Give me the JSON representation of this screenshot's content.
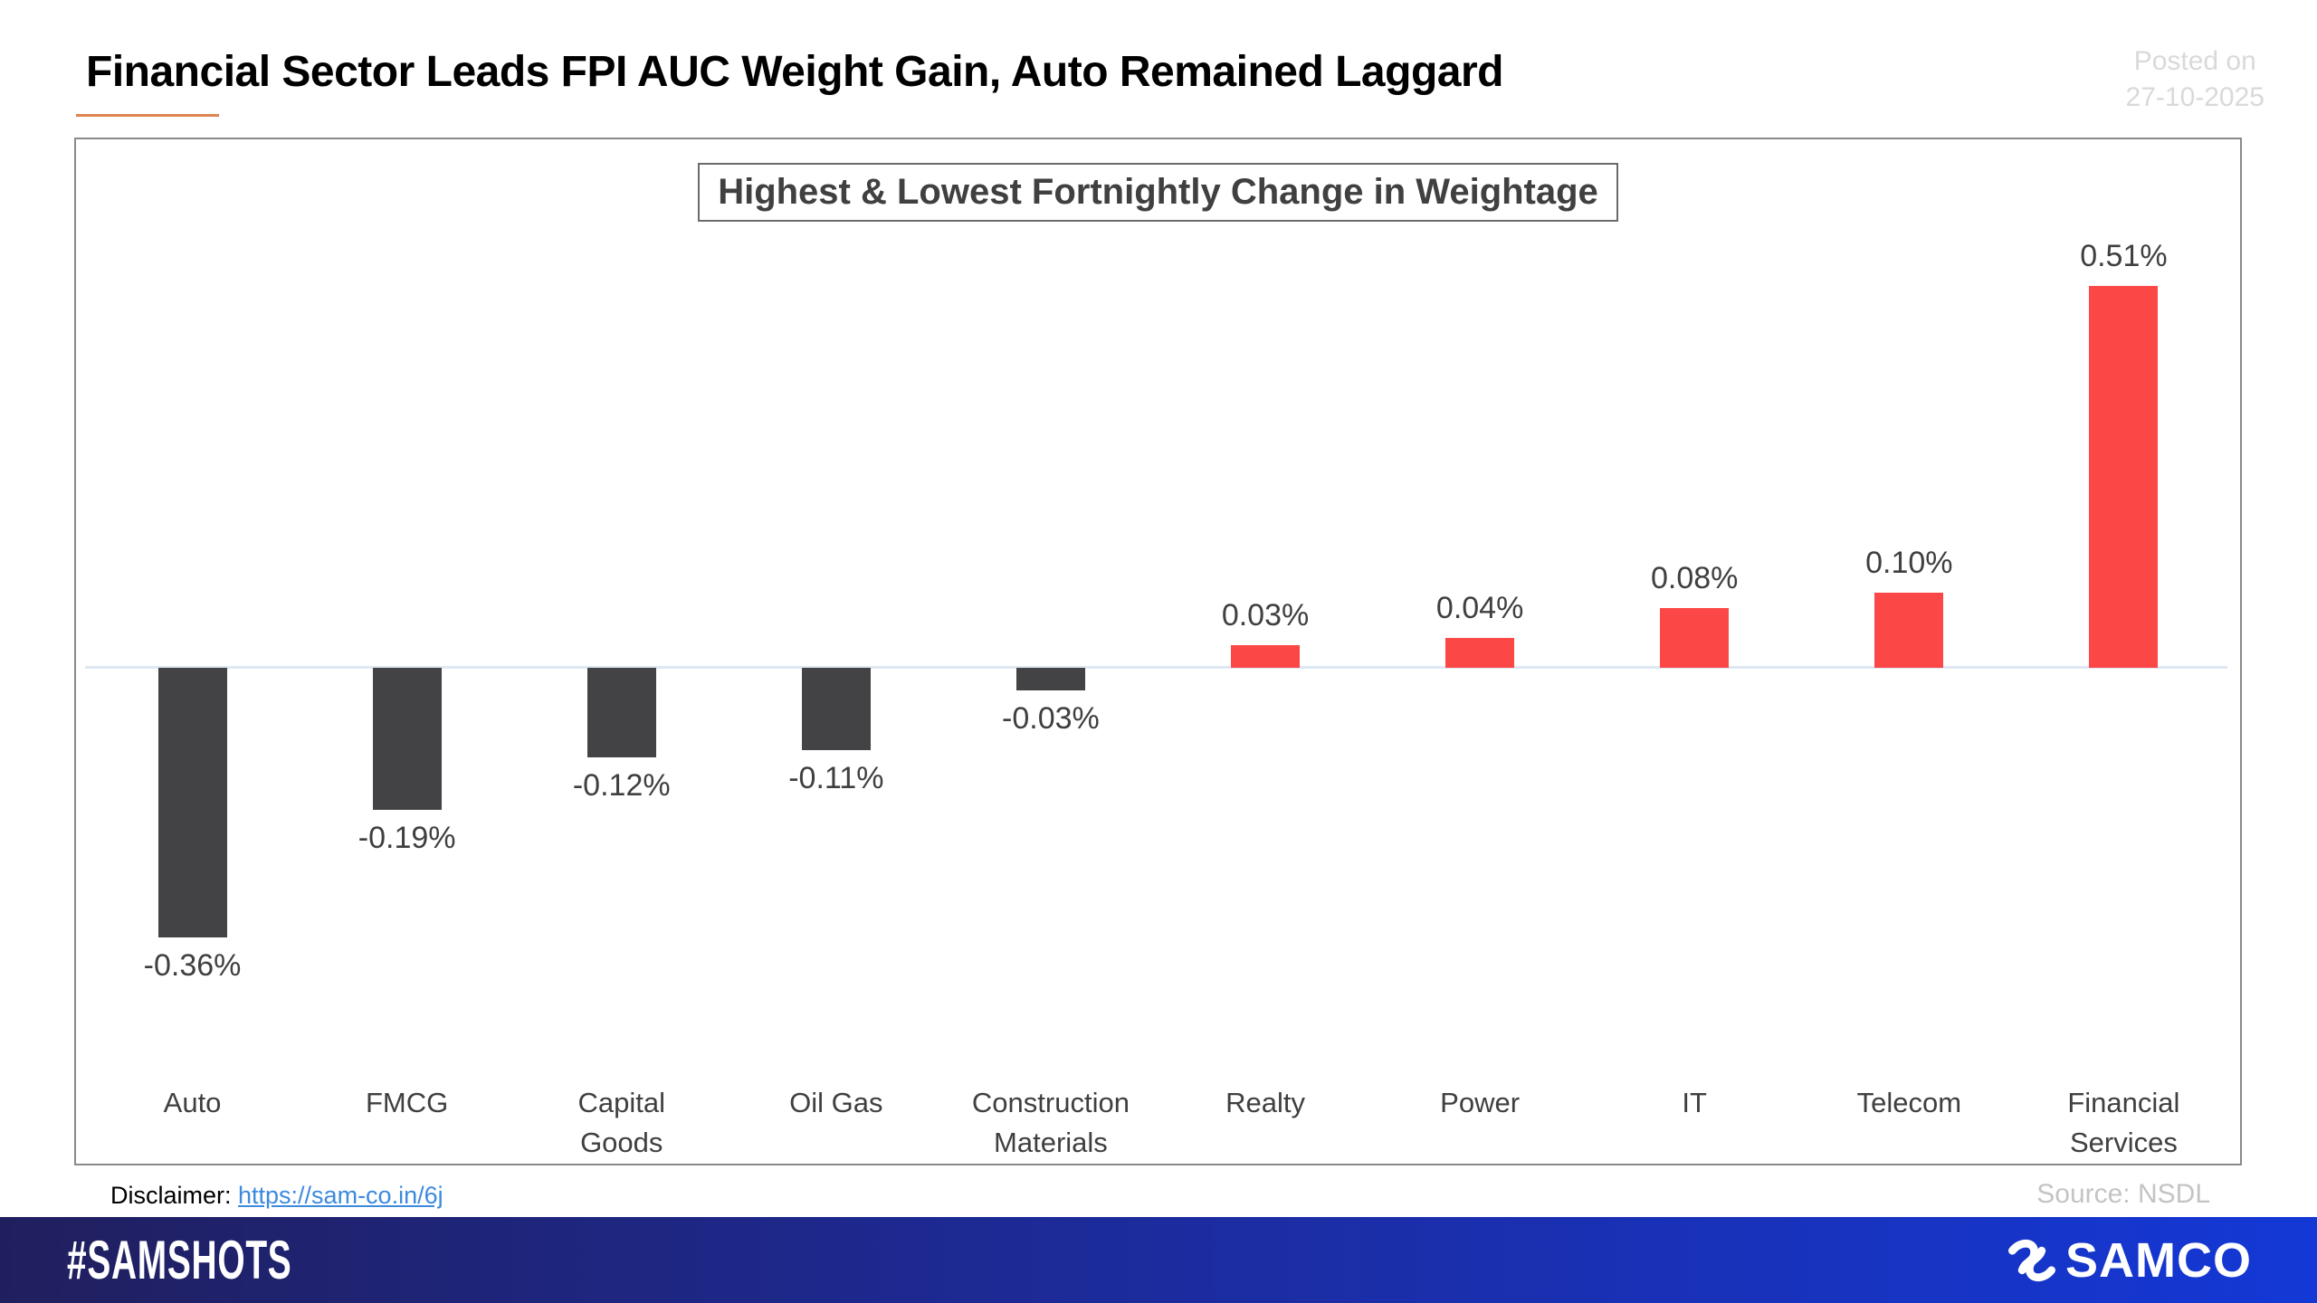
{
  "page": {
    "title": "Financial Sector Leads FPI AUC Weight Gain, Auto Remained Laggard",
    "posted_on_label": "Posted on",
    "posted_on_date": "27-10-2025",
    "disclaimer_label": "Disclaimer: ",
    "disclaimer_link": "https://sam-co.in/6j",
    "source_note": "Source: NSDL",
    "footer": {
      "hashtag": "#SAMSHOTS",
      "brand": "SAMCO",
      "brand_icon": "samco-swirl-icon"
    },
    "accent_colors": {
      "title_underline": "#de8250",
      "link_blue": "#3b8ade",
      "footer_gradient_left": "#201f5e",
      "footer_gradient_right": "#1438d6"
    }
  },
  "chart_data": {
    "type": "bar",
    "title": "Highest & Lowest Fortnightly Change in Weightage",
    "categories": [
      "Auto",
      "FMCG",
      "Capital Goods",
      "Oil Gas",
      "Construction Materials",
      "Realty",
      "Power",
      "IT",
      "Telecom",
      "Financial Services"
    ],
    "values": [
      -0.36,
      -0.19,
      -0.12,
      -0.11,
      -0.03,
      0.03,
      0.04,
      0.08,
      0.1,
      0.51
    ],
    "labels": [
      "-0.36%",
      "-0.19%",
      "-0.12%",
      "-0.11%",
      "-0.03%",
      "0.03%",
      "0.04%",
      "0.08%",
      "0.10%",
      "0.51%"
    ],
    "unit": "%",
    "ylim": [
      -0.45,
      0.57
    ],
    "grid": false,
    "legend": "none",
    "xlabel": "",
    "ylabel": "",
    "colors": {
      "positive": "#fc4747",
      "negative": "#434345",
      "zero_line": "#dfe8f2",
      "label_text": "#3f3f3f"
    },
    "source": "NSDL"
  }
}
